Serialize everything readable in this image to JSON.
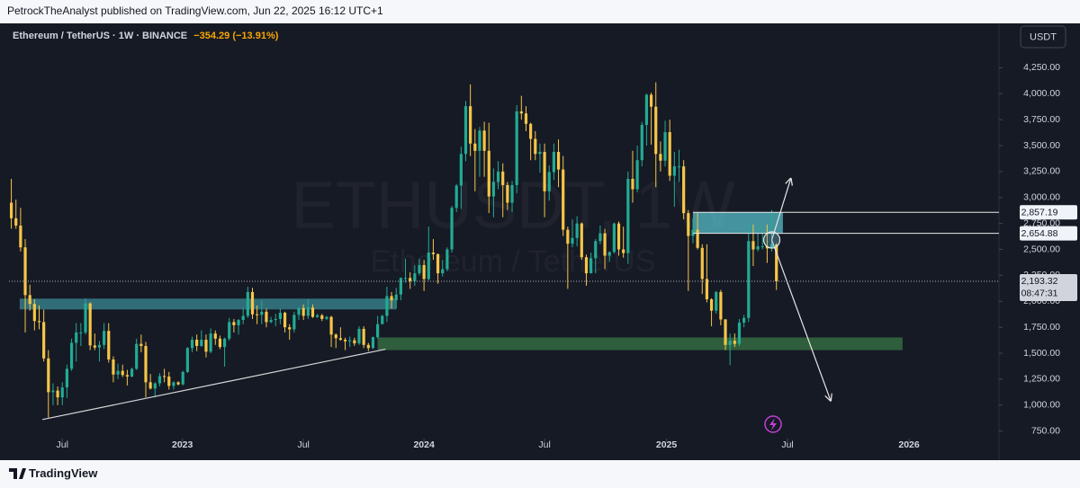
{
  "header": {
    "publisher": "PetrockTheAnalyst published on TradingView.com, Jun 22, 2025 16:12 UTC+1",
    "footer_logo": "TradingView"
  },
  "chart_data": {
    "type": "candlestick",
    "title": "Ethereum / TetherUS · 1W · BINANCE",
    "change": "−354.29 (−13.91%)",
    "currency": "USDT",
    "watermark": [
      "ETHUSDT, 1W",
      "Ethereum / TetherUS"
    ],
    "up_color": "#22ab94",
    "down_color": "#f7c548",
    "grid": false,
    "xlim": [
      -0.5,
      213
    ],
    "ylim": [
      470,
      4678
    ],
    "xticks": [
      {
        "value": 11,
        "label": "Jul"
      },
      {
        "value": 36.9,
        "label": "2023"
      },
      {
        "value": 63,
        "label": "Jul"
      },
      {
        "value": 89,
        "label": "2024"
      },
      {
        "value": 115,
        "label": "Jul"
      },
      {
        "value": 141.3,
        "label": "2025"
      },
      {
        "value": 167.4,
        "label": "Jul"
      },
      {
        "value": 193.6,
        "label": "2026"
      }
    ],
    "yticks": [
      {
        "value": 750,
        "label": "750.00"
      },
      {
        "value": 1000,
        "label": "1,000.00"
      },
      {
        "value": 1250,
        "label": "1,250.00"
      },
      {
        "value": 1500,
        "label": "1,500.00"
      },
      {
        "value": 1750,
        "label": "1,750.00"
      },
      {
        "value": 2000,
        "label": "2,000.00"
      },
      {
        "value": 2250,
        "label": "2,250.00"
      },
      {
        "value": 2500,
        "label": "2,500.00"
      },
      {
        "value": 2750,
        "label": "2,750.00"
      },
      {
        "value": 3000,
        "label": "3,000.00"
      },
      {
        "value": 3250,
        "label": "3,250.00"
      },
      {
        "value": 3500,
        "label": "3,500.00"
      },
      {
        "value": 3750,
        "label": "3,750.00"
      },
      {
        "value": 4000,
        "label": "4,000.00"
      },
      {
        "value": 4250,
        "label": "4,250.00"
      }
    ],
    "open": [
      2950,
      2800,
      2730,
      2520,
      2060,
      1975,
      1810,
      1800,
      1450,
      1125,
      1140,
      1075,
      1170,
      1350,
      1600,
      1700,
      1700,
      1980,
      1575,
      1555,
      1580,
      1715,
      1440,
      1295,
      1330,
      1290,
      1275,
      1350,
      1590,
      1570,
      1220,
      1160,
      1210,
      1280,
      1275,
      1185,
      1220,
      1200,
      1320,
      1550,
      1630,
      1570,
      1630,
      1515,
      1690,
      1640,
      1560,
      1640,
      1800,
      1770,
      1820,
      1860,
      2090,
      1875,
      1870,
      1900,
      1800,
      1820,
      1830,
      1890,
      1750,
      1730,
      1870,
      1935,
      1860,
      1940,
      1850,
      1865,
      1830,
      1850,
      1680,
      1645,
      1630,
      1615,
      1625,
      1595,
      1735,
      1580,
      1550,
      1655,
      1780,
      1860,
      2050,
      2010,
      2065,
      2225,
      2225,
      2195,
      2270,
      2350,
      2215,
      2470,
      2455,
      2270,
      2310,
      2500,
      2900,
      3115,
      3420,
      3880,
      3520,
      3450,
      3645,
      3450,
      3010,
      3150,
      3250,
      3120,
      2950,
      3120,
      3830,
      3810,
      3710,
      3565,
      3420,
      3440,
      3060,
      3245,
      3440,
      3270,
      2690,
      2555,
      2610,
      2750,
      2425,
      2270,
      2415,
      2580,
      2655,
      2440,
      2475,
      2750,
      2500,
      2465,
      3180,
      3080,
      3360,
      3700,
      3990,
      3875,
      3420,
      3355,
      3630,
      3210,
      3300,
      3300,
      2850,
      2630,
      2690,
      2515,
      2215,
      2020,
      1910,
      2090,
      1825,
      1580,
      1620,
      1590,
      1795,
      1840,
      2580,
      2500,
      2530,
      2530,
      2510,
      2547.61
    ],
    "high": [
      3180,
      2980,
      2900,
      2600,
      2160,
      2020,
      1960,
      1920,
      1530,
      1210,
      1180,
      1220,
      1390,
      1640,
      1790,
      1790,
      2030,
      1990,
      1690,
      1620,
      1790,
      1790,
      1470,
      1400,
      1390,
      1340,
      1360,
      1640,
      1680,
      1610,
      1300,
      1220,
      1310,
      1350,
      1320,
      1230,
      1230,
      1330,
      1560,
      1660,
      1680,
      1720,
      1680,
      1740,
      1720,
      1670,
      1650,
      1840,
      1830,
      1830,
      1940,
      2140,
      2130,
      1960,
      2010,
      1930,
      1850,
      1880,
      1930,
      1900,
      1780,
      1900,
      1940,
      1970,
      2020,
      1970,
      1880,
      1880,
      1860,
      1860,
      1690,
      1750,
      1650,
      1660,
      1650,
      1760,
      1760,
      1600,
      1660,
      1860,
      1870,
      2140,
      2090,
      2130,
      2230,
      2410,
      2280,
      2350,
      2410,
      2400,
      2720,
      2600,
      2460,
      2400,
      2520,
      2920,
      3130,
      3490,
      3930,
      4090,
      3660,
      3680,
      3730,
      3720,
      3280,
      3350,
      3330,
      3150,
      3160,
      3890,
      3980,
      3880,
      3720,
      3640,
      3520,
      3520,
      3310,
      3520,
      3560,
      3400,
      2720,
      2790,
      2820,
      2760,
      2450,
      2470,
      2600,
      2730,
      2700,
      2480,
      2760,
      2770,
      2720,
      3250,
      3450,
      3500,
      3730,
      4000,
      4010,
      4110,
      3540,
      3740,
      3750,
      3440,
      3460,
      3360,
      2880,
      2800,
      2850,
      2550,
      2550,
      2030,
      2100,
      2110,
      1830,
      1690,
      1690,
      1830,
      1870,
      2740,
      2740,
      2720,
      2730,
      2740,
      2880,
      2560
    ],
    "low": [
      2700,
      2700,
      2480,
      1700,
      1910,
      1720,
      1730,
      1420,
      880,
      1000,
      1000,
      1000,
      1070,
      1330,
      1420,
      1570,
      1680,
      1530,
      1530,
      1420,
      1540,
      1410,
      1220,
      1250,
      1270,
      1190,
      1270,
      1340,
      1510,
      1075,
      1150,
      1075,
      1180,
      1220,
      1150,
      1150,
      1190,
      1190,
      1310,
      1510,
      1520,
      1560,
      1460,
      1500,
      1580,
      1540,
      1370,
      1620,
      1700,
      1680,
      1780,
      1840,
      1830,
      1780,
      1780,
      1750,
      1790,
      1760,
      1780,
      1700,
      1630,
      1700,
      1820,
      1820,
      1830,
      1840,
      1840,
      1810,
      1820,
      1560,
      1550,
      1620,
      1530,
      1560,
      1570,
      1580,
      1550,
      1520,
      1540,
      1640,
      1780,
      1800,
      1930,
      1930,
      2010,
      2180,
      2120,
      2150,
      2250,
      2100,
      2200,
      2400,
      2170,
      2240,
      2290,
      2470,
      2860,
      2890,
      3350,
      3400,
      3060,
      3200,
      3200,
      2850,
      2810,
      3080,
      2810,
      2880,
      2860,
      3040,
      3750,
      3640,
      3360,
      3360,
      3240,
      2810,
      2970,
      3170,
      3100,
      2630,
      2120,
      2520,
      2530,
      2400,
      2150,
      2270,
      2270,
      2550,
      2310,
      2380,
      2460,
      2440,
      2420,
      2360,
      2950,
      3050,
      3300,
      3500,
      3510,
      3100,
      3250,
      3300,
      3160,
      2910,
      3150,
      2790,
      2100,
      2560,
      2500,
      2070,
      1990,
      1760,
      1880,
      1770,
      1530,
      1385,
      1560,
      1570,
      1750,
      1800,
      2340,
      2480,
      2500,
      2370,
      2480,
      2110
    ],
    "close": [
      2800,
      2730,
      2520,
      2060,
      1975,
      1810,
      1800,
      1450,
      1125,
      1140,
      1075,
      1170,
      1350,
      1600,
      1700,
      1700,
      1980,
      1575,
      1555,
      1580,
      1715,
      1440,
      1295,
      1330,
      1290,
      1275,
      1350,
      1590,
      1570,
      1220,
      1160,
      1210,
      1280,
      1275,
      1185,
      1220,
      1200,
      1320,
      1550,
      1630,
      1570,
      1630,
      1515,
      1690,
      1640,
      1560,
      1640,
      1800,
      1770,
      1820,
      1860,
      2090,
      1875,
      1870,
      1900,
      1800,
      1820,
      1830,
      1890,
      1750,
      1730,
      1870,
      1935,
      1860,
      1940,
      1850,
      1865,
      1830,
      1850,
      1680,
      1645,
      1630,
      1615,
      1625,
      1595,
      1735,
      1580,
      1550,
      1655,
      1780,
      1860,
      2050,
      2010,
      2065,
      2225,
      2225,
      2195,
      2270,
      2350,
      2215,
      2470,
      2455,
      2270,
      2310,
      2500,
      2900,
      3115,
      3420,
      3880,
      3520,
      3450,
      3645,
      3450,
      3010,
      3150,
      3250,
      3120,
      2950,
      3120,
      3830,
      3810,
      3710,
      3565,
      3420,
      3440,
      3060,
      3245,
      3440,
      3270,
      2690,
      2555,
      2610,
      2750,
      2425,
      2270,
      2415,
      2580,
      2655,
      2440,
      2475,
      2750,
      2500,
      2465,
      3180,
      3080,
      3360,
      3700,
      3990,
      3875,
      3420,
      3355,
      3630,
      3210,
      3300,
      3300,
      2850,
      2630,
      2690,
      2515,
      2215,
      2020,
      1910,
      2090,
      1825,
      1580,
      1620,
      1590,
      1795,
      1840,
      2580,
      2500,
      2530,
      2530,
      2510,
      2547.61,
      2193.32
    ],
    "zones": [
      {
        "low": 1922,
        "high": 2026,
        "from": 1.8,
        "to": 83,
        "color": "rgba(72,178,190,0.55)"
      },
      {
        "low": 1530,
        "high": 1652,
        "from": 79,
        "to": 192.2,
        "color": "rgba(56,118,70,0.75)"
      },
      {
        "low": {
          "value": 2654.88,
          "label": "2,654.88"
        },
        "high": {
          "value": 2857.19,
          "label": "2,857.19"
        },
        "from": 147,
        "to": 166.4,
        "color": "rgba(90,200,210,0.7)"
      }
    ],
    "last_price": {
      "value": 2193.32,
      "label": "2,193.32",
      "countdown": "08:47:31"
    },
    "drawings": {
      "trendline": [
        [
          6.7,
          861
        ],
        [
          80.7,
          1539
        ]
      ],
      "arrows": [
        {
          "from": [
            164,
            2591
          ],
          "to": [
            168.1,
            3183
          ]
        },
        {
          "from": [
            164,
            2591
          ],
          "to": [
            176.7,
            1043
          ]
        }
      ]
    }
  }
}
